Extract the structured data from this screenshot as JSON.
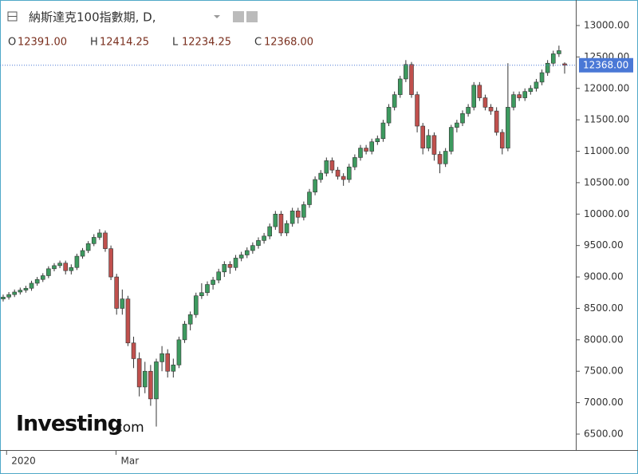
{
  "chart_data": {
    "type": "candlestick",
    "title": "納斯達克100指數期, D,",
    "ohlc_header": [
      {
        "label": "O",
        "value": "12391.00"
      },
      {
        "label": "H",
        "value": "12414.25"
      },
      {
        "label": "L",
        "value": "12234.25"
      },
      {
        "label": "C",
        "value": "12368.00"
      }
    ],
    "last_price": {
      "value": 12368,
      "label": "12368.00"
    },
    "logo": {
      "brand": "Investing",
      "suffix": ".com"
    },
    "up_color": "#3d9a5f",
    "down_color": "#c0504d",
    "xlim": [
      -0.56,
      100.97
    ],
    "xticks": [
      {
        "value": 0.6,
        "label": "2020"
      },
      {
        "value": 19.9,
        "label": "Mar"
      }
    ],
    "ylim": [
      6246,
      13406
    ],
    "yticks": [
      {
        "value": 6500,
        "label": "6500.00"
      },
      {
        "value": 7000,
        "label": "7000.00"
      },
      {
        "value": 7500,
        "label": "7500.00"
      },
      {
        "value": 8000,
        "label": "8000.00"
      },
      {
        "value": 8500,
        "label": "8500.00"
      },
      {
        "value": 9000,
        "label": "9000.00"
      },
      {
        "value": 9500,
        "label": "9500.00"
      },
      {
        "value": 10000,
        "label": "10000.00"
      },
      {
        "value": 10500,
        "label": "10500.00"
      },
      {
        "value": 11000,
        "label": "11000.00"
      },
      {
        "value": 11500,
        "label": "11500.00"
      },
      {
        "value": 12000,
        "label": "12000.00"
      },
      {
        "value": 12500,
        "label": "12500.00"
      },
      {
        "value": 13000,
        "label": "13000.00"
      }
    ],
    "open": [
      8650,
      8680,
      8720,
      8760,
      8790,
      8820,
      8900,
      8960,
      9020,
      9130,
      9180,
      9220,
      9100,
      9150,
      9330,
      9420,
      9530,
      9630,
      9700,
      9450,
      9000,
      8500,
      8650,
      7950,
      7700,
      7250,
      7500,
      7060,
      7650,
      7780,
      7500,
      7600,
      8000,
      8250,
      8400,
      8700,
      8750,
      8880,
      8950,
      9080,
      9200,
      9150,
      9300,
      9350,
      9420,
      9500,
      9580,
      9650,
      9800,
      10000,
      9700,
      9850,
      10050,
      9950,
      10150,
      10350,
      10550,
      10650,
      10850,
      10700,
      10600,
      10550,
      10750,
      10900,
      11050,
      11000,
      11150,
      11200,
      11450,
      11700,
      11900,
      12150,
      12380,
      11900,
      11400,
      11050,
      11250,
      10950,
      10800,
      11000,
      11380,
      11450,
      11600,
      11700,
      12050,
      11850,
      11700,
      11640,
      11300,
      11050,
      11700,
      11900,
      11850,
      11950,
      12000,
      12100,
      12250,
      12400,
      12550,
      12391
    ],
    "high": [
      8720,
      8760,
      8800,
      8830,
      8860,
      8940,
      9000,
      9060,
      9170,
      9220,
      9260,
      9260,
      9200,
      9370,
      9460,
      9570,
      9680,
      9760,
      9740,
      9500,
      9050,
      8800,
      8700,
      8050,
      7800,
      7650,
      7600,
      7700,
      7900,
      7850,
      7700,
      8050,
      8300,
      8450,
      8750,
      8900,
      8930,
      9000,
      9130,
      9250,
      9250,
      9350,
      9400,
      9470,
      9550,
      9630,
      9700,
      9850,
      10050,
      10050,
      9900,
      10100,
      10100,
      10200,
      10400,
      10600,
      10700,
      10900,
      10900,
      10750,
      10650,
      10800,
      10950,
      11100,
      11100,
      11200,
      11250,
      11500,
      11750,
      11950,
      12200,
      12450,
      12420,
      11950,
      11450,
      11350,
      11300,
      11000,
      11050,
      11420,
      11500,
      11650,
      11750,
      12100,
      12100,
      11900,
      11750,
      11700,
      11350,
      12400,
      11950,
      11950,
      12000,
      12050,
      12150,
      12300,
      12450,
      12600,
      12680,
      12414.25
    ],
    "low": [
      8610,
      8640,
      8680,
      8720,
      8750,
      8780,
      8860,
      8920,
      8980,
      9090,
      9140,
      9040,
      9040,
      9110,
      9290,
      9380,
      9490,
      9590,
      9400,
      8950,
      8400,
      8400,
      7900,
      7550,
      7100,
      7150,
      6950,
      6620,
      7500,
      7400,
      7400,
      7550,
      7950,
      8150,
      8350,
      8650,
      8700,
      8800,
      8900,
      9000,
      9050,
      9100,
      9250,
      9300,
      9370,
      9450,
      9530,
      9600,
      9750,
      9650,
      9650,
      9800,
      9850,
      9900,
      10100,
      10300,
      10500,
      10600,
      10650,
      10550,
      10450,
      10500,
      10700,
      10850,
      10950,
      10950,
      11100,
      11150,
      11400,
      11650,
      11850,
      12100,
      11850,
      11300,
      10950,
      11000,
      10850,
      10650,
      10750,
      10950,
      11300,
      11400,
      11550,
      11650,
      11800,
      11650,
      11580,
      11250,
      10950,
      11000,
      11650,
      11800,
      11800,
      11900,
      11950,
      12050,
      12200,
      12350,
      12500,
      12234.25
    ],
    "close": [
      8680,
      8720,
      8760,
      8790,
      8820,
      8900,
      8960,
      9020,
      9130,
      9180,
      9220,
      9100,
      9150,
      9330,
      9420,
      9530,
      9630,
      9700,
      9450,
      9000,
      8500,
      8650,
      7950,
      7700,
      7250,
      7500,
      7060,
      7650,
      7780,
      7500,
      7600,
      8000,
      8250,
      8400,
      8700,
      8750,
      8880,
      8950,
      9080,
      9200,
      9150,
      9300,
      9350,
      9420,
      9500,
      9580,
      9650,
      9800,
      10000,
      9700,
      9850,
      10050,
      9950,
      10150,
      10350,
      10550,
      10650,
      10850,
      10700,
      10600,
      10550,
      10750,
      10900,
      11050,
      11000,
      11150,
      11200,
      11450,
      11700,
      11900,
      12150,
      12380,
      11900,
      11400,
      11050,
      11250,
      10950,
      10800,
      11000,
      11380,
      11450,
      11600,
      11700,
      12050,
      11850,
      11700,
      11640,
      11300,
      11050,
      11700,
      11900,
      11850,
      11950,
      12000,
      12100,
      12250,
      12400,
      12550,
      12600,
      12368
    ]
  }
}
